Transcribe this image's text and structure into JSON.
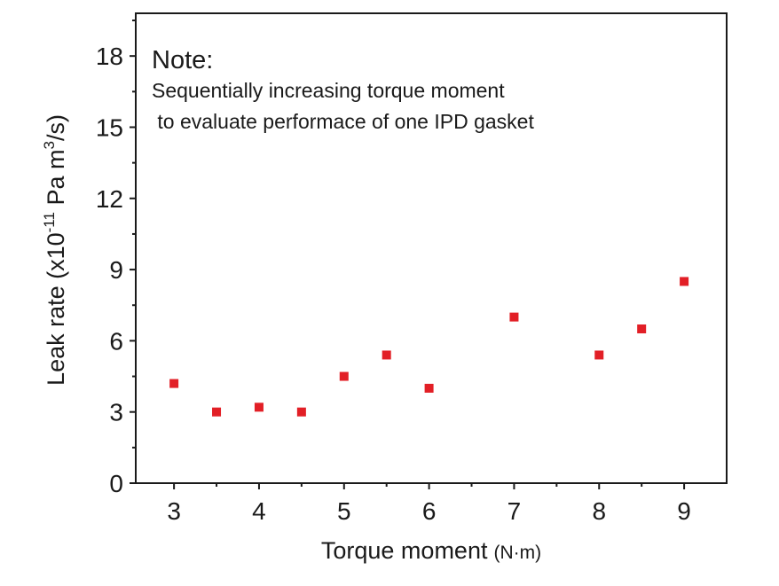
{
  "chart_data": {
    "type": "scatter",
    "xlabel": "Torque moment",
    "xlabel_unit": "(N·m)",
    "ylabel_prefix": "Leak rate (x10",
    "ylabel_exp1": "-11",
    "ylabel_mid": " Pa m",
    "ylabel_exp2": "3",
    "ylabel_suffix": "/s)",
    "xlim": [
      2.55,
      9.5
    ],
    "ylim": [
      0,
      19.8
    ],
    "xticks": [
      3,
      4,
      5,
      6,
      7,
      8,
      9
    ],
    "yticks": [
      0,
      3,
      6,
      9,
      12,
      15,
      18
    ],
    "grid": false,
    "marker_color": "#e21f26",
    "points": [
      {
        "x": 3.0,
        "y": 4.2
      },
      {
        "x": 3.5,
        "y": 3.0
      },
      {
        "x": 4.0,
        "y": 3.2
      },
      {
        "x": 4.5,
        "y": 3.0
      },
      {
        "x": 5.0,
        "y": 4.5
      },
      {
        "x": 5.5,
        "y": 5.4
      },
      {
        "x": 6.0,
        "y": 4.0
      },
      {
        "x": 7.0,
        "y": 7.0
      },
      {
        "x": 8.0,
        "y": 5.4
      },
      {
        "x": 8.5,
        "y": 6.5
      },
      {
        "x": 9.0,
        "y": 8.5
      }
    ],
    "annotation": {
      "title": "Note:",
      "line1": "Sequentially increasing torque moment",
      "line2": " to evaluate performace of one IPD gasket"
    }
  }
}
